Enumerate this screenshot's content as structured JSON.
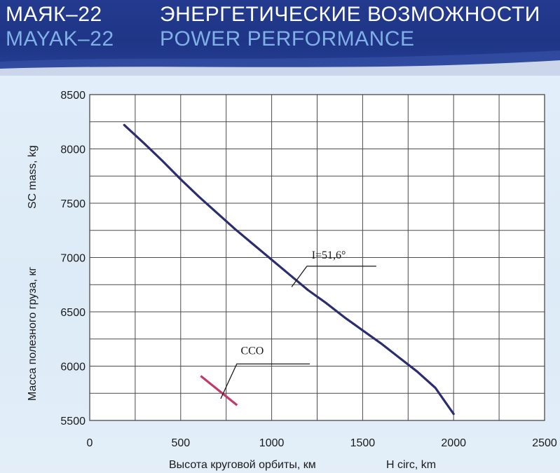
{
  "header": {
    "ru_left": "МАЯК–22",
    "ru_right": "ЭНЕРГЕТИЧЕСКИЕ ВОЗМОЖНОСТИ",
    "en_left": "MAYAK–22",
    "en_right": "POWER PERFORMANCE"
  },
  "colors": {
    "header_bg": "#213889",
    "header_en_text": "#7fb0e6",
    "main_curve": "#2b2d6e",
    "sso_line": "#c23a6a",
    "grid": "#4a4a4a"
  },
  "chart_data": {
    "type": "line",
    "xlabel_ru": "Высота круговой орбиты, км",
    "xlabel_en": "H circ, km",
    "ylabel_ru": "Масса полезного груза, кг",
    "ylabel_en": "SC mass, kg",
    "xlim": [
      0,
      2500
    ],
    "ylim": [
      5500,
      8500
    ],
    "x_ticks": [
      "0",
      "500",
      "1000",
      "1500",
      "2000",
      "2500"
    ],
    "y_ticks": [
      "5500",
      "6000",
      "6500",
      "7000",
      "7500",
      "8000",
      "8500"
    ],
    "x_ticks_values": [
      0,
      500,
      1000,
      1500,
      2000,
      2500
    ],
    "y_ticks_values": [
      5500,
      6000,
      6500,
      7000,
      7500,
      8000,
      8500
    ],
    "x_grid_step": 250,
    "y_grid_step": 250,
    "grid": true,
    "series": [
      {
        "name": "I=51,6°",
        "x": [
          190,
          300,
          400,
          500,
          600,
          700,
          800,
          900,
          1000,
          1100,
          1200,
          1300,
          1400,
          1500,
          1600,
          1700,
          1800,
          1900,
          2000
        ],
        "y": [
          8220,
          8050,
          7890,
          7720,
          7560,
          7410,
          7260,
          7120,
          6980,
          6840,
          6700,
          6580,
          6450,
          6330,
          6210,
          6080,
          5950,
          5800,
          5560
        ]
      },
      {
        "name": "ССО",
        "x": [
          610,
          810
        ],
        "y": [
          5910,
          5640
        ]
      }
    ],
    "annotations": [
      {
        "text": "I=51,6°",
        "x": 1220,
        "y": 6990,
        "leader_from": [
          1110,
          6730
        ],
        "leader_to": [
          1575,
          6920
        ]
      },
      {
        "text": "ССО",
        "x": 830,
        "y": 6110,
        "leader_from": [
          720,
          5700
        ],
        "leader_to": [
          1210,
          6020
        ]
      }
    ]
  }
}
